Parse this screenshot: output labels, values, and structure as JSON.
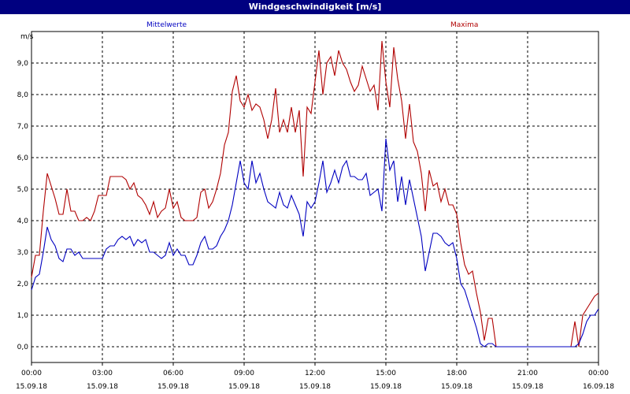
{
  "chart_data": {
    "type": "line",
    "title": "Windgeschwindigkeit [m/s]",
    "ylabel": "m/s",
    "ylim": [
      -0.5,
      10.0
    ],
    "xlim": [
      0,
      144
    ],
    "grid": true,
    "y_ticks": [
      "0,0",
      "1,0",
      "2,0",
      "3,0",
      "4,0",
      "5,0",
      "6,0",
      "7,0",
      "8,0",
      "9,0"
    ],
    "x_ticks": [
      {
        "x": 0,
        "time": "00:00",
        "date": "15.09.18"
      },
      {
        "x": 18,
        "time": "03:00",
        "date": "15.09.18"
      },
      {
        "x": 36,
        "time": "06:00",
        "date": "15.09.18"
      },
      {
        "x": 54,
        "time": "09:00",
        "date": "15.09.18"
      },
      {
        "x": 72,
        "time": "12:00",
        "date": "15.09.18"
      },
      {
        "x": 90,
        "time": "15:00",
        "date": "15.09.18"
      },
      {
        "x": 108,
        "time": "18:00",
        "date": "15.09.18"
      },
      {
        "x": 126,
        "time": "21:00",
        "date": "15.09.18"
      },
      {
        "x": 144,
        "time": "00:00",
        "date": "16.09.18"
      }
    ],
    "series": [
      {
        "name": "Mittelwerte",
        "color": "#0000c0",
        "legend_position": "top-left",
        "values": [
          1.8,
          2.2,
          2.3,
          3.0,
          3.8,
          3.4,
          3.2,
          2.8,
          2.7,
          3.1,
          3.1,
          2.9,
          3.0,
          2.8,
          2.8,
          2.8,
          2.8,
          2.8,
          2.8,
          3.1,
          3.2,
          3.2,
          3.4,
          3.5,
          3.4,
          3.5,
          3.2,
          3.4,
          3.3,
          3.4,
          3.0,
          3.0,
          2.9,
          2.8,
          2.9,
          3.3,
          2.9,
          3.1,
          2.9,
          2.9,
          2.6,
          2.6,
          2.9,
          3.3,
          3.5,
          3.1,
          3.1,
          3.2,
          3.5,
          3.7,
          4.0,
          4.5,
          5.2,
          5.9,
          5.2,
          5.0,
          5.9,
          5.2,
          5.5,
          5.0,
          4.6,
          4.5,
          4.4,
          4.9,
          4.5,
          4.4,
          4.8,
          4.5,
          4.2,
          3.5,
          4.6,
          4.4,
          4.6,
          5.2,
          5.9,
          4.9,
          5.2,
          5.6,
          5.2,
          5.7,
          5.9,
          5.4,
          5.4,
          5.3,
          5.3,
          5.5,
          4.8,
          4.9,
          5.0,
          4.3,
          6.6,
          5.6,
          5.9,
          4.6,
          5.4,
          4.5,
          5.3,
          4.7,
          4.1,
          3.5,
          2.4,
          3.0,
          3.6,
          3.6,
          3.5,
          3.3,
          3.2,
          3.3,
          2.8,
          2.0,
          1.8,
          1.4,
          1.0,
          0.6,
          0.1,
          0.0,
          0.1,
          0.1,
          0.0,
          0.0,
          0.0,
          0.0,
          0.0,
          0.0,
          0.0,
          0.0,
          0.0,
          0.0,
          0.0,
          0.0,
          0.0,
          0.0,
          0.0,
          0.0,
          0.0,
          0.0,
          0.0,
          0.0,
          0.0,
          0.1,
          0.4,
          0.8,
          1.0,
          1.0,
          1.2
        ]
      },
      {
        "name": "Maxima",
        "color": "#b00000",
        "legend_position": "top-right",
        "values": [
          2.2,
          2.9,
          2.9,
          4.3,
          5.5,
          5.1,
          4.7,
          4.2,
          4.2,
          5.0,
          4.3,
          4.3,
          4.0,
          4.0,
          4.1,
          4.0,
          4.3,
          4.8,
          4.8,
          4.8,
          5.4,
          5.4,
          5.4,
          5.4,
          5.3,
          5.0,
          5.2,
          4.8,
          4.7,
          4.5,
          4.2,
          4.6,
          4.1,
          4.3,
          4.4,
          5.0,
          4.4,
          4.6,
          4.1,
          4.0,
          4.0,
          4.0,
          4.1,
          4.9,
          5.0,
          4.4,
          4.6,
          5.0,
          5.5,
          6.4,
          6.8,
          8.1,
          8.6,
          7.8,
          7.6,
          8.0,
          7.5,
          7.7,
          7.6,
          7.2,
          6.6,
          7.2,
          8.2,
          6.8,
          7.2,
          6.8,
          7.6,
          6.8,
          7.5,
          5.4,
          7.6,
          7.4,
          8.4,
          9.4,
          8.0,
          9.0,
          9.2,
          8.6,
          9.4,
          9.0,
          8.8,
          8.4,
          8.1,
          8.3,
          8.9,
          8.5,
          8.1,
          8.3,
          7.5,
          9.7,
          8.4,
          7.6,
          9.5,
          8.5,
          7.8,
          6.6,
          7.7,
          6.5,
          6.2,
          5.5,
          4.3,
          5.6,
          5.1,
          5.2,
          4.6,
          5.0,
          4.5,
          4.5,
          4.2,
          3.3,
          2.6,
          2.3,
          2.4,
          1.7,
          1.1,
          0.2,
          0.9,
          0.9,
          0.0,
          0.0,
          0.0,
          0.0,
          0.0,
          0.0,
          0.0,
          0.0,
          0.0,
          0.0,
          0.0,
          0.0,
          0.0,
          0.0,
          0.0,
          0.0,
          0.0,
          0.0,
          0.0,
          0.0,
          0.8,
          0.0,
          1.0,
          1.2,
          1.4,
          1.6,
          1.7
        ]
      }
    ]
  }
}
